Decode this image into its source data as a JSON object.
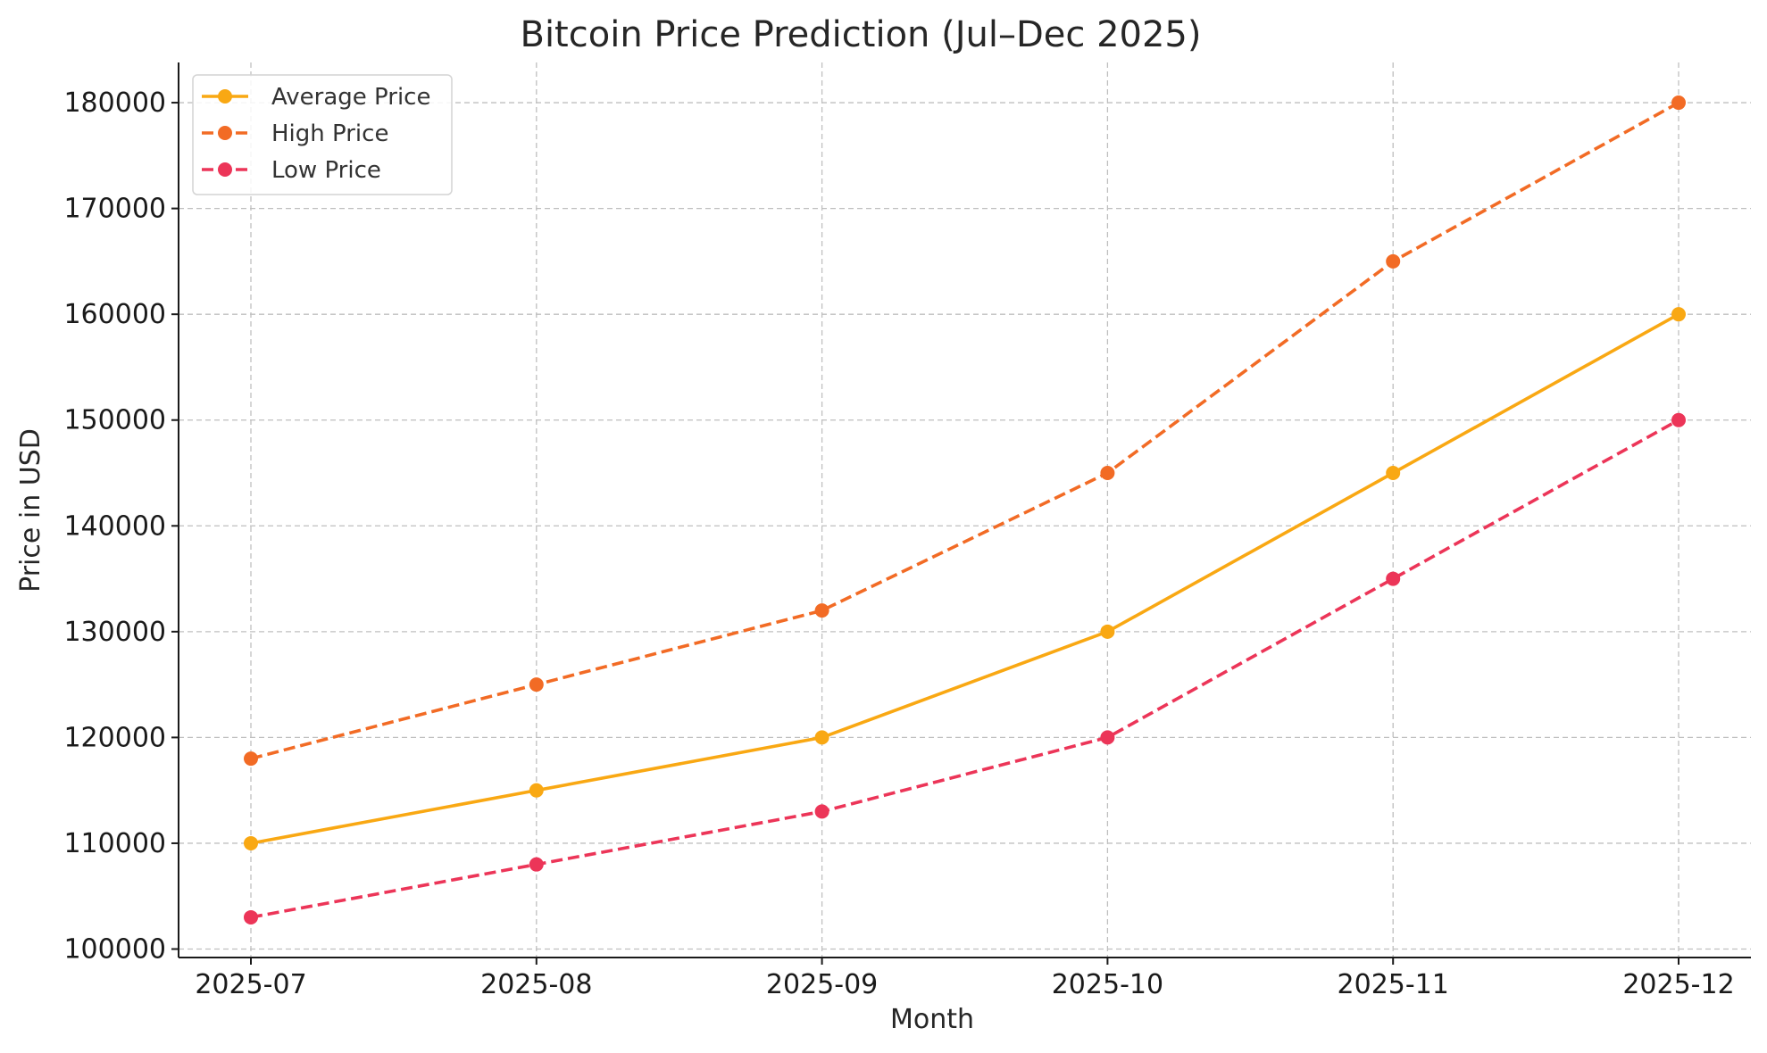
{
  "chart_data": {
    "type": "line",
    "title": "Bitcoin Price Prediction (Jul–Dec 2025)",
    "xlabel": "Month",
    "ylabel": "Price in USD",
    "categories": [
      "2025-07",
      "2025-08",
      "2025-09",
      "2025-10",
      "2025-11",
      "2025-12"
    ],
    "yticks": [
      100000,
      110000,
      120000,
      130000,
      140000,
      150000,
      160000,
      170000,
      180000
    ],
    "ylim": [
      99200,
      183800
    ],
    "grid": true,
    "legend_position": "top-left",
    "series": [
      {
        "name": "Average Price",
        "values": [
          110000,
          115000,
          120000,
          130000,
          145000,
          160000
        ],
        "color": "#f9a813",
        "style": "solid"
      },
      {
        "name": "High Price",
        "values": [
          118000,
          125000,
          132000,
          145000,
          165000,
          180000
        ],
        "color": "#f26b25",
        "style": "dashed"
      },
      {
        "name": "Low Price",
        "values": [
          103000,
          108000,
          113000,
          120000,
          135000,
          150000
        ],
        "color": "#ec3558",
        "style": "dashed"
      }
    ]
  }
}
